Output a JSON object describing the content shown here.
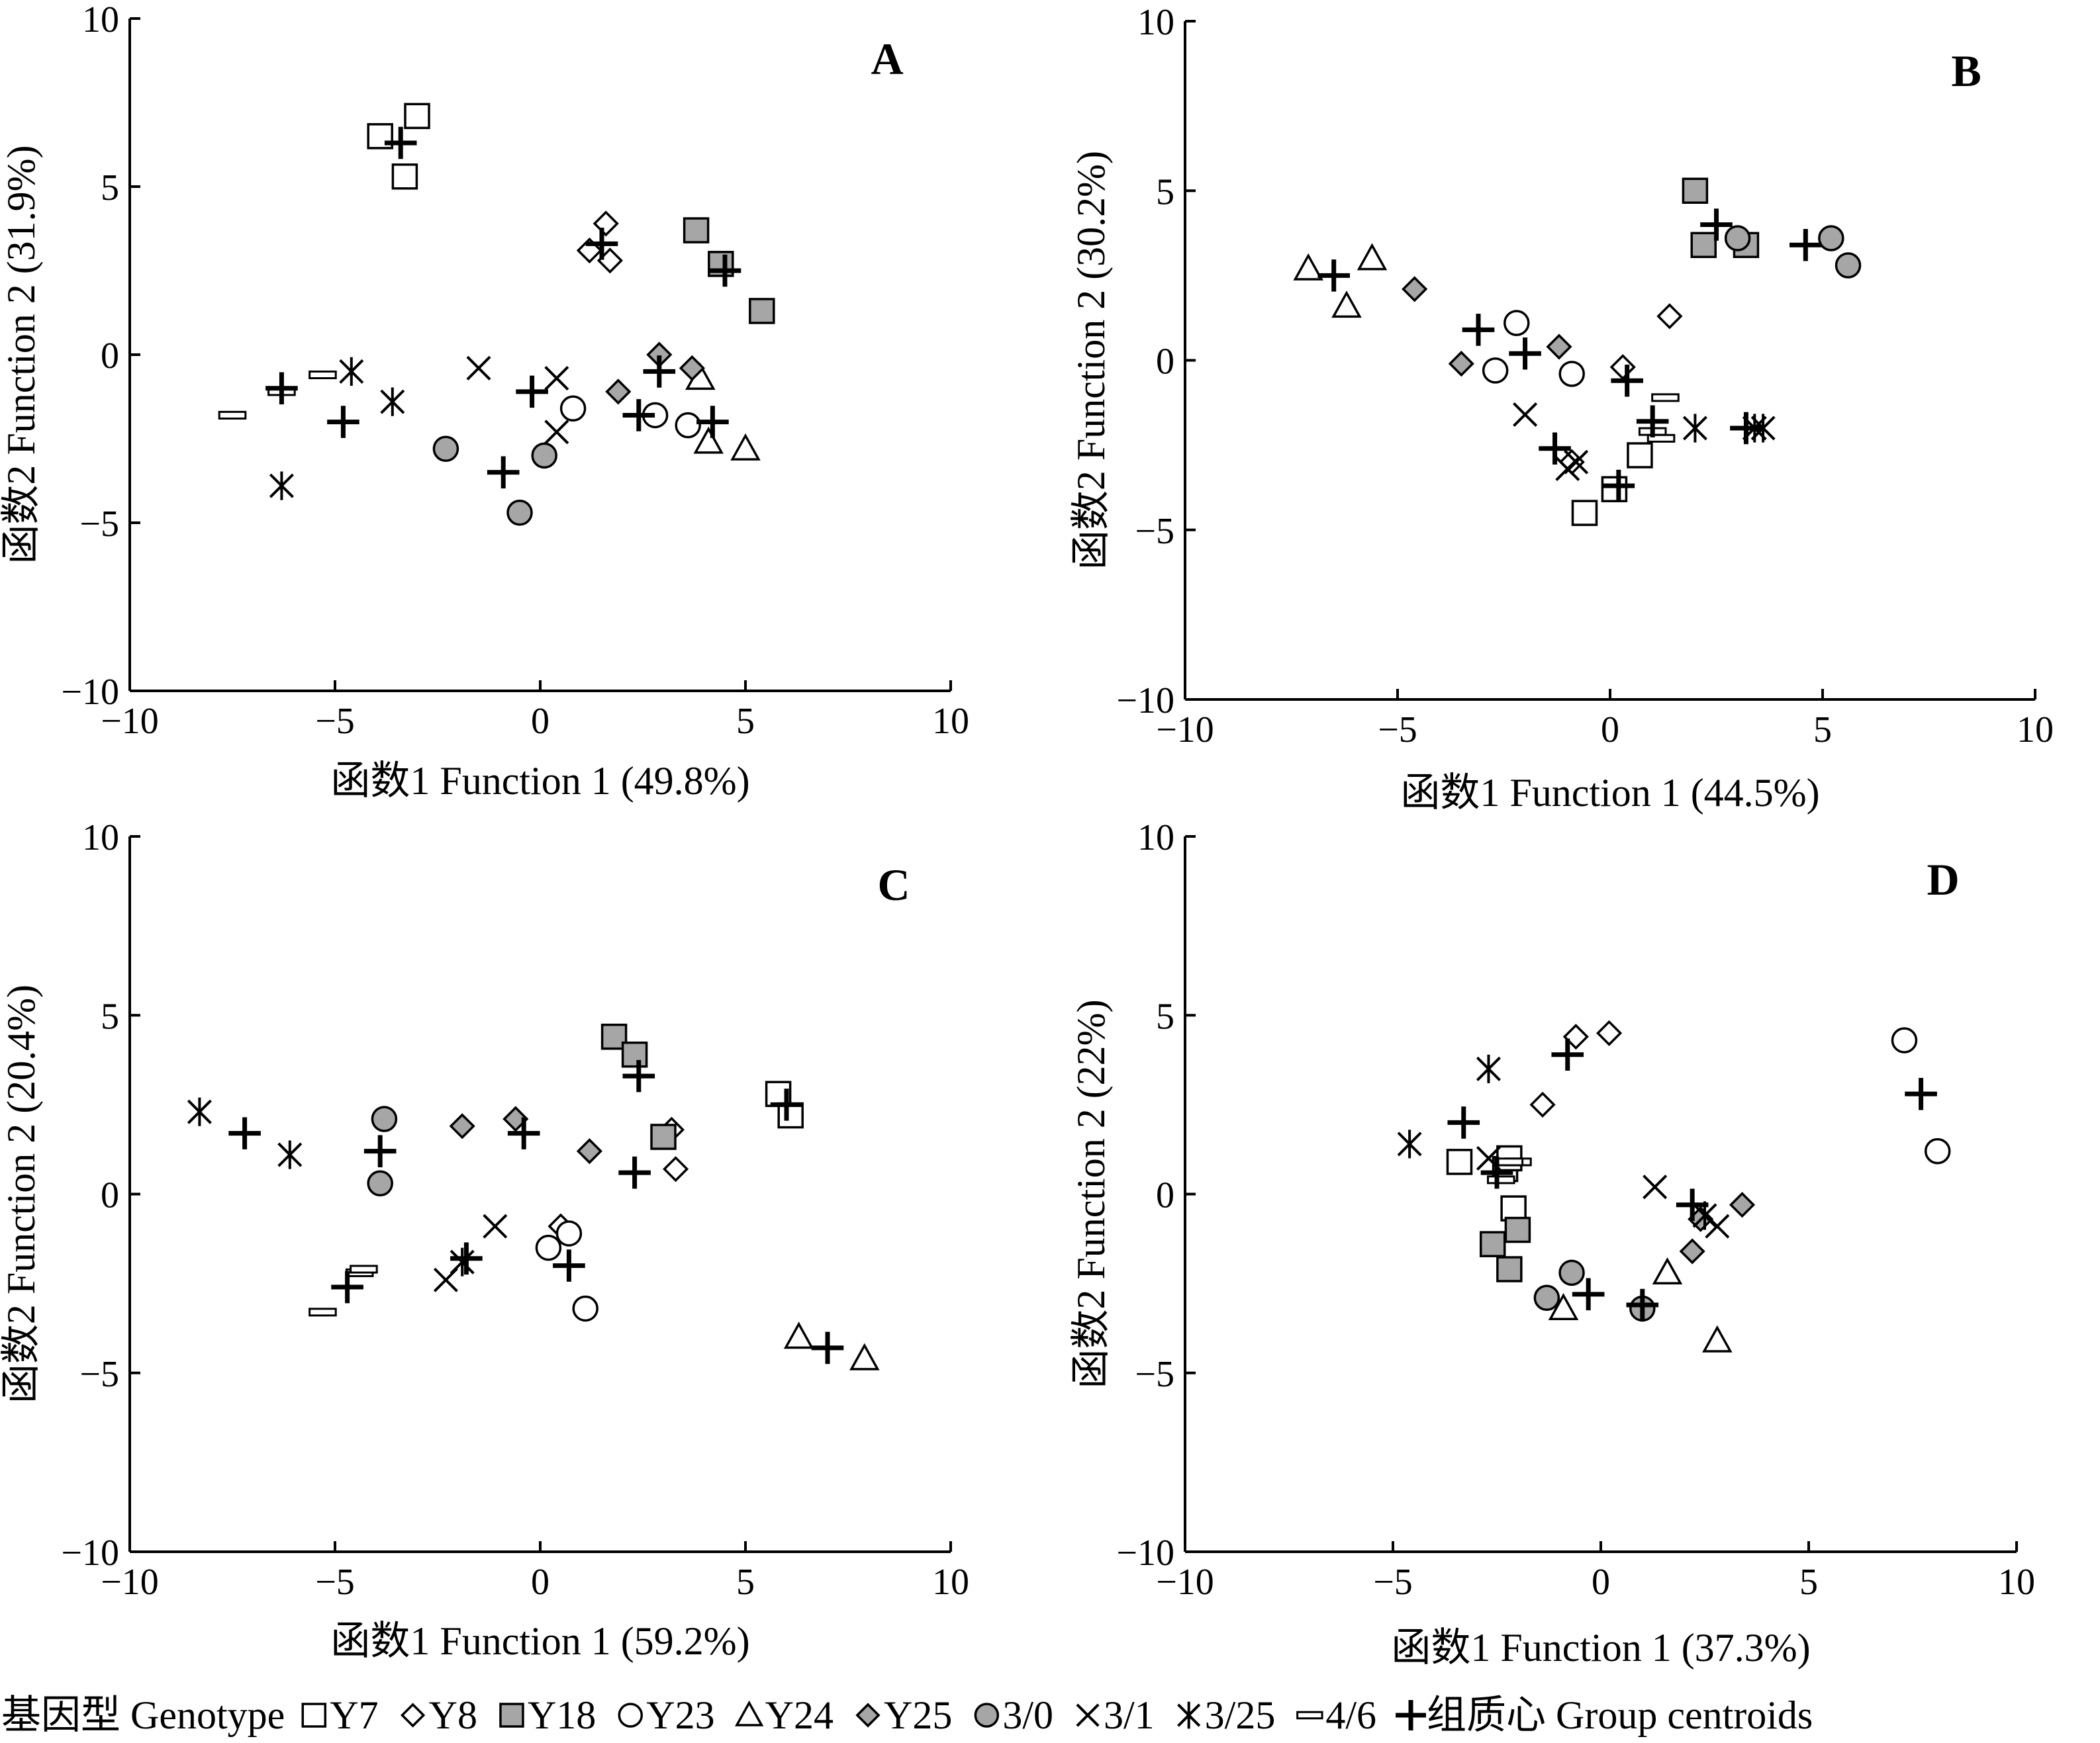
{
  "chart_data": [
    {
      "type": "scatter",
      "title": "A",
      "xlabel": "函数1 Function 1 (49.8%)",
      "ylabel": "函数2 Function 2 (31.9%)",
      "xlim": [
        -10,
        10
      ],
      "ylim": [
        -10,
        10
      ],
      "xticks": [
        "−10",
        "−5",
        "0",
        "5",
        "10"
      ],
      "yticks": [
        "10",
        "5",
        "0",
        "−5",
        "−10"
      ],
      "grid": false,
      "series": [
        {
          "name": "Y7",
          "points": [
            [
              -3.9,
              6.5
            ],
            [
              -3.3,
              5.3
            ],
            [
              -3.0,
              7.1
            ]
          ]
        },
        {
          "name": "Y8",
          "points": [
            [
              1.2,
              3.1
            ],
            [
              1.6,
              3.9
            ],
            [
              1.7,
              2.8
            ]
          ]
        },
        {
          "name": "Y18",
          "points": [
            [
              3.8,
              3.7
            ],
            [
              4.4,
              2.7
            ],
            [
              5.4,
              1.3
            ]
          ]
        },
        {
          "name": "Y23",
          "points": [
            [
              0.8,
              -1.6
            ],
            [
              2.8,
              -1.8
            ],
            [
              3.6,
              -2.1
            ]
          ]
        },
        {
          "name": "Y24",
          "points": [
            [
              3.9,
              -0.7
            ],
            [
              4.1,
              -2.6
            ],
            [
              5.0,
              -2.8
            ]
          ]
        },
        {
          "name": "Y25",
          "points": [
            [
              1.9,
              -1.1
            ],
            [
              2.9,
              0.0
            ],
            [
              3.7,
              -0.4
            ]
          ]
        },
        {
          "name": "3/0",
          "points": [
            [
              -2.3,
              -2.8
            ],
            [
              0.1,
              -3.0
            ],
            [
              -0.5,
              -4.7
            ]
          ]
        },
        {
          "name": "3/1",
          "points": [
            [
              -1.5,
              -0.4
            ],
            [
              0.4,
              -0.7
            ],
            [
              0.4,
              -2.3
            ]
          ]
        },
        {
          "name": "3/25",
          "points": [
            [
              -4.6,
              -0.5
            ],
            [
              -3.6,
              -1.4
            ],
            [
              -6.3,
              -3.9
            ]
          ]
        },
        {
          "name": "4/6",
          "points": [
            [
              -7.5,
              -1.8
            ],
            [
              -6.3,
              -1.1
            ],
            [
              -5.3,
              -0.6
            ]
          ]
        },
        {
          "name": "组质心 Group centroids",
          "points": [
            [
              -3.4,
              6.3
            ],
            [
              1.5,
              3.3
            ],
            [
              4.5,
              2.5
            ],
            [
              2.4,
              -1.8
            ],
            [
              4.2,
              -2.0
            ],
            [
              2.9,
              -0.5
            ],
            [
              -0.9,
              -3.5
            ],
            [
              -0.2,
              -1.1
            ],
            [
              -4.8,
              -2.0
            ],
            [
              -6.3,
              -1.0
            ]
          ]
        }
      ]
    },
    {
      "type": "scatter",
      "title": "B",
      "xlabel": "函数1 Function 1 (44.5%)",
      "ylabel": "函数2 Function 2 (30.2%)",
      "xlim": [
        -10,
        10
      ],
      "ylim": [
        -10,
        10
      ],
      "xticks": [
        "−10",
        "−5",
        "0",
        "5",
        "10"
      ],
      "yticks": [
        "10",
        "5",
        "0",
        "−5",
        "−10"
      ],
      "grid": false,
      "series": [
        {
          "name": "Y7",
          "points": [
            [
              -0.6,
              -4.5
            ],
            [
              0.1,
              -3.8
            ],
            [
              0.7,
              -2.8
            ]
          ]
        },
        {
          "name": "Y8",
          "points": [
            [
              -0.9,
              -3.0
            ],
            [
              0.3,
              -0.2
            ],
            [
              1.4,
              1.3
            ]
          ]
        },
        {
          "name": "Y18",
          "points": [
            [
              2.0,
              5.0
            ],
            [
              2.2,
              3.4
            ],
            [
              3.2,
              3.4
            ]
          ]
        },
        {
          "name": "Y23",
          "points": [
            [
              -2.2,
              1.1
            ],
            [
              -2.7,
              -0.3
            ],
            [
              -0.9,
              -0.4
            ]
          ]
        },
        {
          "name": "Y24",
          "points": [
            [
              -7.1,
              2.7
            ],
            [
              -6.2,
              1.6
            ],
            [
              -5.6,
              3.0
            ]
          ]
        },
        {
          "name": "Y25",
          "points": [
            [
              -4.6,
              2.1
            ],
            [
              -3.5,
              -0.1
            ],
            [
              -1.2,
              0.4
            ]
          ]
        },
        {
          "name": "3/0",
          "points": [
            [
              3.0,
              3.6
            ],
            [
              5.2,
              3.6
            ],
            [
              5.6,
              2.8
            ]
          ]
        },
        {
          "name": "3/1",
          "points": [
            [
              -2.0,
              -1.6
            ],
            [
              -1.0,
              -3.2
            ],
            [
              -0.8,
              -3.0
            ]
          ]
        },
        {
          "name": "3/25",
          "points": [
            [
              2.0,
              -2.0
            ],
            [
              3.4,
              -2.0
            ],
            [
              3.6,
              -2.0
            ]
          ]
        },
        {
          "name": "4/6",
          "points": [
            [
              1.0,
              -2.1
            ],
            [
              1.2,
              -2.3
            ],
            [
              1.3,
              -1.1
            ]
          ]
        },
        {
          "name": "组质心 Group centroids",
          "points": [
            [
              -6.5,
              2.5
            ],
            [
              -3.1,
              0.9
            ],
            [
              -2.0,
              0.2
            ],
            [
              -1.3,
              -2.6
            ],
            [
              0.4,
              -0.6
            ],
            [
              0.2,
              -3.7
            ],
            [
              1.0,
              -1.8
            ],
            [
              2.5,
              4.0
            ],
            [
              4.6,
              3.4
            ],
            [
              3.2,
              -2.0
            ]
          ]
        }
      ]
    },
    {
      "type": "scatter",
      "title": "C",
      "xlabel": "函数1 Function 1 (59.2%)",
      "ylabel": "函数2 Function 2 (20.4%)",
      "xlim": [
        -10,
        10
      ],
      "ylim": [
        -10,
        10
      ],
      "xticks": [
        "−10",
        "−5",
        "0",
        "5",
        "10"
      ],
      "yticks": [
        "10",
        "5",
        "0",
        "−5",
        "−10"
      ],
      "grid": false,
      "series": [
        {
          "name": "Y7",
          "points": [
            [
              5.8,
              2.8
            ],
            [
              6.1,
              2.2
            ]
          ]
        },
        {
          "name": "Y8",
          "points": [
            [
              0.5,
              -0.9
            ],
            [
              3.3,
              0.7
            ],
            [
              3.2,
              1.8
            ]
          ]
        },
        {
          "name": "Y18",
          "points": [
            [
              1.8,
              4.4
            ],
            [
              2.3,
              3.9
            ],
            [
              3.0,
              1.6
            ]
          ]
        },
        {
          "name": "Y23",
          "points": [
            [
              0.2,
              -1.5
            ],
            [
              0.7,
              -1.1
            ],
            [
              1.1,
              -3.2
            ]
          ]
        },
        {
          "name": "Y24",
          "points": [
            [
              6.3,
              -4.0
            ],
            [
              7.9,
              -4.6
            ]
          ]
        },
        {
          "name": "Y25",
          "points": [
            [
              -1.9,
              1.9
            ],
            [
              -0.6,
              2.1
            ],
            [
              1.2,
              1.2
            ]
          ]
        },
        {
          "name": "3/0",
          "points": [
            [
              -3.8,
              2.1
            ],
            [
              -3.9,
              0.3
            ]
          ]
        },
        {
          "name": "3/1",
          "points": [
            [
              -2.3,
              -2.4
            ],
            [
              -1.1,
              -0.9
            ]
          ]
        },
        {
          "name": "3/25",
          "points": [
            [
              -8.3,
              2.3
            ],
            [
              -6.1,
              1.1
            ],
            [
              -1.9,
              -1.9
            ]
          ]
        },
        {
          "name": "4/6",
          "points": [
            [
              -5.3,
              -3.3
            ],
            [
              -4.4,
              -2.2
            ],
            [
              -4.3,
              -2.1
            ]
          ]
        },
        {
          "name": "组质心 Group centroids",
          "points": [
            [
              -7.2,
              1.7
            ],
            [
              -3.9,
              1.2
            ],
            [
              -4.7,
              -2.6
            ],
            [
              -1.8,
              -1.8
            ],
            [
              -0.4,
              1.7
            ],
            [
              0.7,
              -2.0
            ],
            [
              2.3,
              0.6
            ],
            [
              2.4,
              3.3
            ],
            [
              6.0,
              2.5
            ],
            [
              7.0,
              -4.3
            ]
          ]
        }
      ]
    },
    {
      "type": "scatter",
      "title": "D",
      "xlabel": "函数1 Function 1 (37.3%)",
      "ylabel": "函数2 Function 2 (22%)",
      "xlim": [
        -10,
        10
      ],
      "ylim": [
        -10,
        10
      ],
      "xticks": [
        "−10",
        "−5",
        "0",
        "5",
        "10"
      ],
      "yticks": [
        "10",
        "5",
        "0",
        "−5",
        "−10"
      ],
      "grid": false,
      "series": [
        {
          "name": "Y7",
          "points": [
            [
              -3.4,
              0.9
            ],
            [
              -2.3,
              0.7
            ],
            [
              -2.2,
              1.0
            ],
            [
              -2.1,
              -0.4
            ]
          ]
        },
        {
          "name": "Y8",
          "points": [
            [
              -1.4,
              2.5
            ],
            [
              -0.6,
              4.4
            ],
            [
              0.2,
              4.5
            ]
          ]
        },
        {
          "name": "Y18",
          "points": [
            [
              -2.6,
              -1.4
            ],
            [
              -2.2,
              -2.1
            ],
            [
              -2.0,
              -1.0
            ]
          ]
        },
        {
          "name": "Y23",
          "points": [
            [
              7.3,
              4.3
            ],
            [
              8.1,
              1.2
            ]
          ]
        },
        {
          "name": "Y24",
          "points": [
            [
              -0.9,
              -3.2
            ],
            [
              1.6,
              -2.2
            ],
            [
              2.8,
              -4.1
            ]
          ]
        },
        {
          "name": "Y25",
          "points": [
            [
              2.2,
              -1.6
            ],
            [
              2.4,
              -0.7
            ],
            [
              3.4,
              -0.3
            ]
          ]
        },
        {
          "name": "3/0",
          "points": [
            [
              -1.3,
              -2.9
            ],
            [
              -0.7,
              -2.2
            ],
            [
              1.0,
              -3.2
            ]
          ]
        },
        {
          "name": "3/1",
          "points": [
            [
              -2.7,
              1.0
            ],
            [
              1.3,
              0.2
            ],
            [
              2.8,
              -0.9
            ]
          ]
        },
        {
          "name": "3/25",
          "points": [
            [
              -4.6,
              1.4
            ],
            [
              -2.7,
              3.5
            ],
            [
              2.5,
              -0.6
            ]
          ]
        },
        {
          "name": "4/6",
          "points": [
            [
              -2.0,
              0.9
            ],
            [
              -2.2,
              0.9
            ],
            [
              -2.4,
              0.4
            ]
          ]
        },
        {
          "name": "组质心 Group centroids",
          "points": [
            [
              -3.3,
              2.0
            ],
            [
              -2.5,
              0.6
            ],
            [
              -0.8,
              3.9
            ],
            [
              -0.3,
              -2.8
            ],
            [
              1.0,
              -3.1
            ],
            [
              2.2,
              -0.3
            ],
            [
              7.7,
              2.8
            ]
          ]
        }
      ]
    }
  ],
  "legend": {
    "title": "基因型 Genotype",
    "placement": "bottom",
    "items": [
      {
        "label": "Y7",
        "marker": "square-open"
      },
      {
        "label": "Y8",
        "marker": "diamond-open"
      },
      {
        "label": "Y18",
        "marker": "square-gray"
      },
      {
        "label": "Y23",
        "marker": "circle-open"
      },
      {
        "label": "Y24",
        "marker": "triangle-open"
      },
      {
        "label": "Y25",
        "marker": "diamond-gray"
      },
      {
        "label": "3/0",
        "marker": "circle-gray"
      },
      {
        "label": "3/1",
        "marker": "x-cross"
      },
      {
        "label": "3/25",
        "marker": "asterisk"
      },
      {
        "label": "4/6",
        "marker": "bar-open"
      },
      {
        "label": "组质心 Group centroids",
        "marker": "plus-bold"
      }
    ]
  },
  "colors": {
    "gray_fill": "#a6a6a6",
    "stroke": "#000000",
    "background": "#ffffff"
  }
}
